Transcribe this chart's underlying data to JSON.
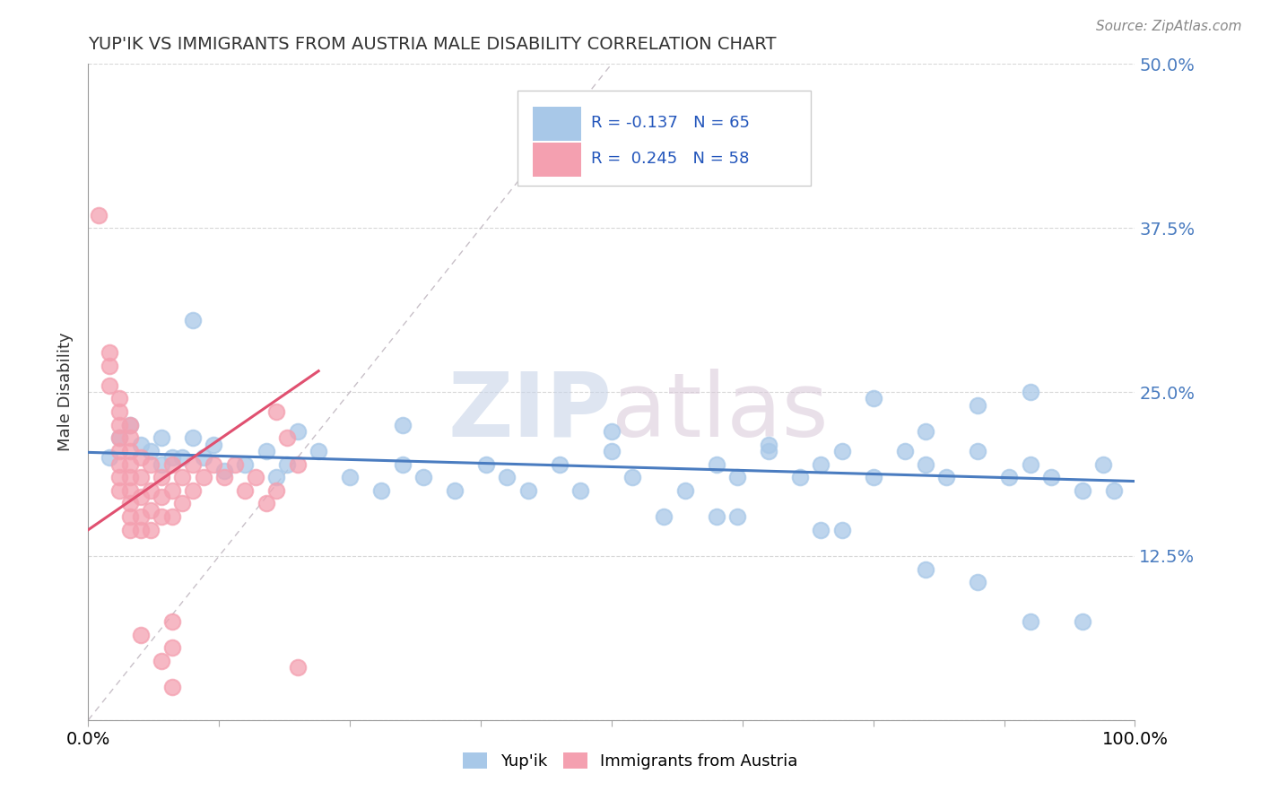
{
  "title": "YUP'IK VS IMMIGRANTS FROM AUSTRIA MALE DISABILITY CORRELATION CHART",
  "source": "Source: ZipAtlas.com",
  "ylabel": "Male Disability",
  "xlim": [
    0.0,
    1.0
  ],
  "ylim": [
    0.0,
    0.5
  ],
  "yticks": [
    0.0,
    0.125,
    0.25,
    0.375,
    0.5
  ],
  "right_ytick_labels": [
    "",
    "12.5%",
    "25.0%",
    "37.5%",
    "50.0%"
  ],
  "color_blue": "#a8c8e8",
  "color_pink": "#f4a0b0",
  "trend_blue_color": "#4a7cc0",
  "trend_pink_color": "#e05070",
  "diagonal_color": "#c8c0c8",
  "blue_scatter": [
    [
      0.02,
      0.2
    ],
    [
      0.03,
      0.215
    ],
    [
      0.04,
      0.225
    ],
    [
      0.05,
      0.21
    ],
    [
      0.06,
      0.205
    ],
    [
      0.07,
      0.215
    ],
    [
      0.07,
      0.195
    ],
    [
      0.08,
      0.2
    ],
    [
      0.09,
      0.2
    ],
    [
      0.1,
      0.215
    ],
    [
      0.11,
      0.2
    ],
    [
      0.12,
      0.21
    ],
    [
      0.13,
      0.19
    ],
    [
      0.15,
      0.195
    ],
    [
      0.17,
      0.205
    ],
    [
      0.18,
      0.185
    ],
    [
      0.19,
      0.195
    ],
    [
      0.2,
      0.22
    ],
    [
      0.22,
      0.205
    ],
    [
      0.25,
      0.185
    ],
    [
      0.28,
      0.175
    ],
    [
      0.3,
      0.195
    ],
    [
      0.32,
      0.185
    ],
    [
      0.35,
      0.175
    ],
    [
      0.38,
      0.195
    ],
    [
      0.4,
      0.185
    ],
    [
      0.42,
      0.175
    ],
    [
      0.45,
      0.195
    ],
    [
      0.47,
      0.175
    ],
    [
      0.5,
      0.205
    ],
    [
      0.52,
      0.185
    ],
    [
      0.55,
      0.155
    ],
    [
      0.57,
      0.175
    ],
    [
      0.6,
      0.195
    ],
    [
      0.6,
      0.155
    ],
    [
      0.62,
      0.155
    ],
    [
      0.62,
      0.185
    ],
    [
      0.65,
      0.205
    ],
    [
      0.68,
      0.185
    ],
    [
      0.7,
      0.195
    ],
    [
      0.72,
      0.205
    ],
    [
      0.75,
      0.185
    ],
    [
      0.75,
      0.245
    ],
    [
      0.78,
      0.205
    ],
    [
      0.8,
      0.195
    ],
    [
      0.8,
      0.22
    ],
    [
      0.82,
      0.185
    ],
    [
      0.85,
      0.205
    ],
    [
      0.85,
      0.24
    ],
    [
      0.88,
      0.185
    ],
    [
      0.9,
      0.195
    ],
    [
      0.9,
      0.25
    ],
    [
      0.92,
      0.185
    ],
    [
      0.95,
      0.175
    ],
    [
      0.97,
      0.195
    ],
    [
      0.98,
      0.175
    ],
    [
      0.1,
      0.305
    ],
    [
      0.3,
      0.225
    ],
    [
      0.5,
      0.22
    ],
    [
      0.65,
      0.21
    ],
    [
      0.7,
      0.145
    ],
    [
      0.72,
      0.145
    ],
    [
      0.8,
      0.115
    ],
    [
      0.85,
      0.105
    ],
    [
      0.9,
      0.075
    ],
    [
      0.95,
      0.075
    ]
  ],
  "pink_scatter": [
    [
      0.01,
      0.385
    ],
    [
      0.02,
      0.28
    ],
    [
      0.02,
      0.27
    ],
    [
      0.02,
      0.255
    ],
    [
      0.03,
      0.245
    ],
    [
      0.03,
      0.235
    ],
    [
      0.03,
      0.225
    ],
    [
      0.03,
      0.215
    ],
    [
      0.03,
      0.205
    ],
    [
      0.03,
      0.195
    ],
    [
      0.03,
      0.185
    ],
    [
      0.03,
      0.175
    ],
    [
      0.04,
      0.225
    ],
    [
      0.04,
      0.215
    ],
    [
      0.04,
      0.205
    ],
    [
      0.04,
      0.195
    ],
    [
      0.04,
      0.185
    ],
    [
      0.04,
      0.175
    ],
    [
      0.04,
      0.165
    ],
    [
      0.04,
      0.155
    ],
    [
      0.04,
      0.145
    ],
    [
      0.05,
      0.2
    ],
    [
      0.05,
      0.185
    ],
    [
      0.05,
      0.17
    ],
    [
      0.05,
      0.155
    ],
    [
      0.05,
      0.145
    ],
    [
      0.05,
      0.065
    ],
    [
      0.06,
      0.195
    ],
    [
      0.06,
      0.175
    ],
    [
      0.06,
      0.16
    ],
    [
      0.06,
      0.145
    ],
    [
      0.07,
      0.185
    ],
    [
      0.07,
      0.17
    ],
    [
      0.07,
      0.155
    ],
    [
      0.07,
      0.045
    ],
    [
      0.08,
      0.195
    ],
    [
      0.08,
      0.175
    ],
    [
      0.08,
      0.155
    ],
    [
      0.08,
      0.075
    ],
    [
      0.08,
      0.055
    ],
    [
      0.08,
      0.025
    ],
    [
      0.09,
      0.185
    ],
    [
      0.09,
      0.165
    ],
    [
      0.1,
      0.195
    ],
    [
      0.1,
      0.175
    ],
    [
      0.11,
      0.185
    ],
    [
      0.12,
      0.195
    ],
    [
      0.13,
      0.185
    ],
    [
      0.14,
      0.195
    ],
    [
      0.15,
      0.175
    ],
    [
      0.16,
      0.185
    ],
    [
      0.17,
      0.165
    ],
    [
      0.18,
      0.175
    ],
    [
      0.18,
      0.235
    ],
    [
      0.19,
      0.215
    ],
    [
      0.2,
      0.195
    ],
    [
      0.2,
      0.04
    ]
  ]
}
